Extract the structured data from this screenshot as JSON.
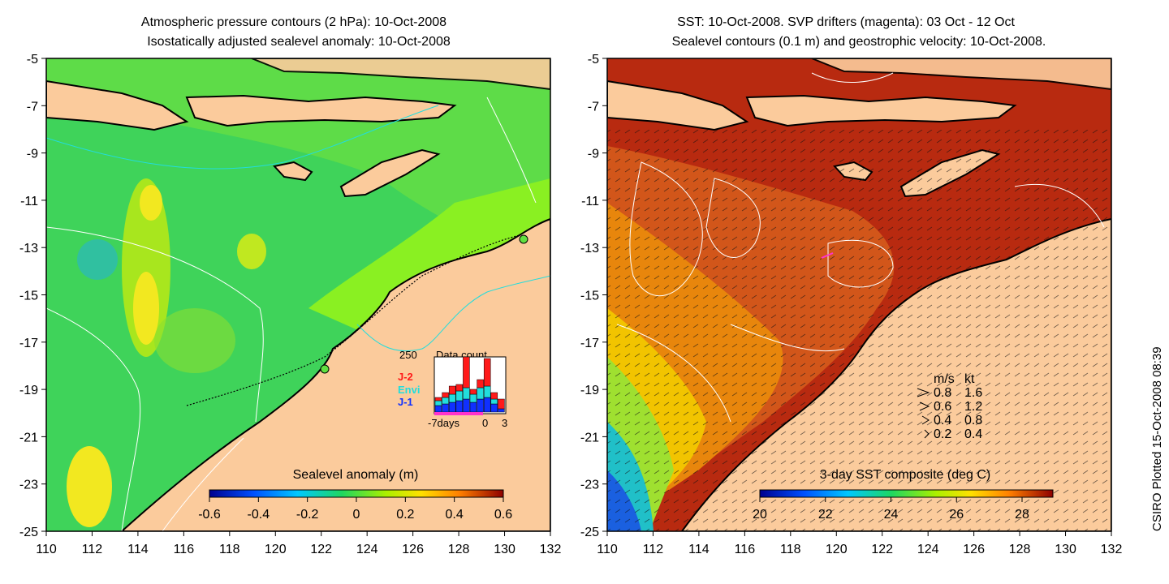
{
  "left_panel": {
    "title_line1": "Atmospheric pressure contours (2 hPa): 10-Oct-2008",
    "title_line2": "Isostatically adjusted sealevel anomaly: 10-Oct-2008",
    "colorbar_title": "Sealevel anomaly (m)",
    "colorbar_ticks": [
      "-0.6",
      "-0.4",
      "-0.2",
      "0",
      "0.2",
      "0.4",
      "0.6"
    ],
    "inset": {
      "title": "Data count",
      "max_label": "250",
      "x_labels": [
        "-7days",
        "0",
        "3"
      ],
      "legend": [
        {
          "label": "J-2",
          "color": "#ff1a1a"
        },
        {
          "label": "Envi",
          "color": "#22dddd"
        },
        {
          "label": "J-1",
          "color": "#1030ff"
        }
      ]
    }
  },
  "right_panel": {
    "title_line1": "SST: 10-Oct-2008. SVP drifters (magenta): 03 Oct - 12 Oct",
    "title_line2": "Sealevel contours (0.1 m) and geostrophic velocity: 10-Oct-2008.",
    "colorbar_title": "3-day SST composite (deg C)",
    "colorbar_ticks": [
      "20",
      "22",
      "24",
      "26",
      "28"
    ],
    "velocity_legend": {
      "header_ms": "m/s",
      "header_kt": "kt",
      "rows": [
        {
          "ms": "0.8",
          "kt": "1.6"
        },
        {
          "ms": "0.6",
          "kt": "1.2"
        },
        {
          "ms": "0.4",
          "kt": "0.8"
        },
        {
          "ms": "0.2",
          "kt": "0.4"
        }
      ]
    }
  },
  "axes": {
    "x_ticks": [
      "110",
      "112",
      "114",
      "116",
      "118",
      "120",
      "122",
      "124",
      "126",
      "128",
      "130",
      "132"
    ],
    "y_ticks": [
      "-5",
      "-7",
      "-9",
      "-11",
      "-13",
      "-15",
      "-17",
      "-19",
      "-21",
      "-23",
      "-25"
    ]
  },
  "credit": "CSIRO Plotted 15-Oct-2008 08:39",
  "colors": {
    "land": "#fbcb9c",
    "sea_left": "#3ddb55",
    "sea_right": "#b82a10"
  }
}
